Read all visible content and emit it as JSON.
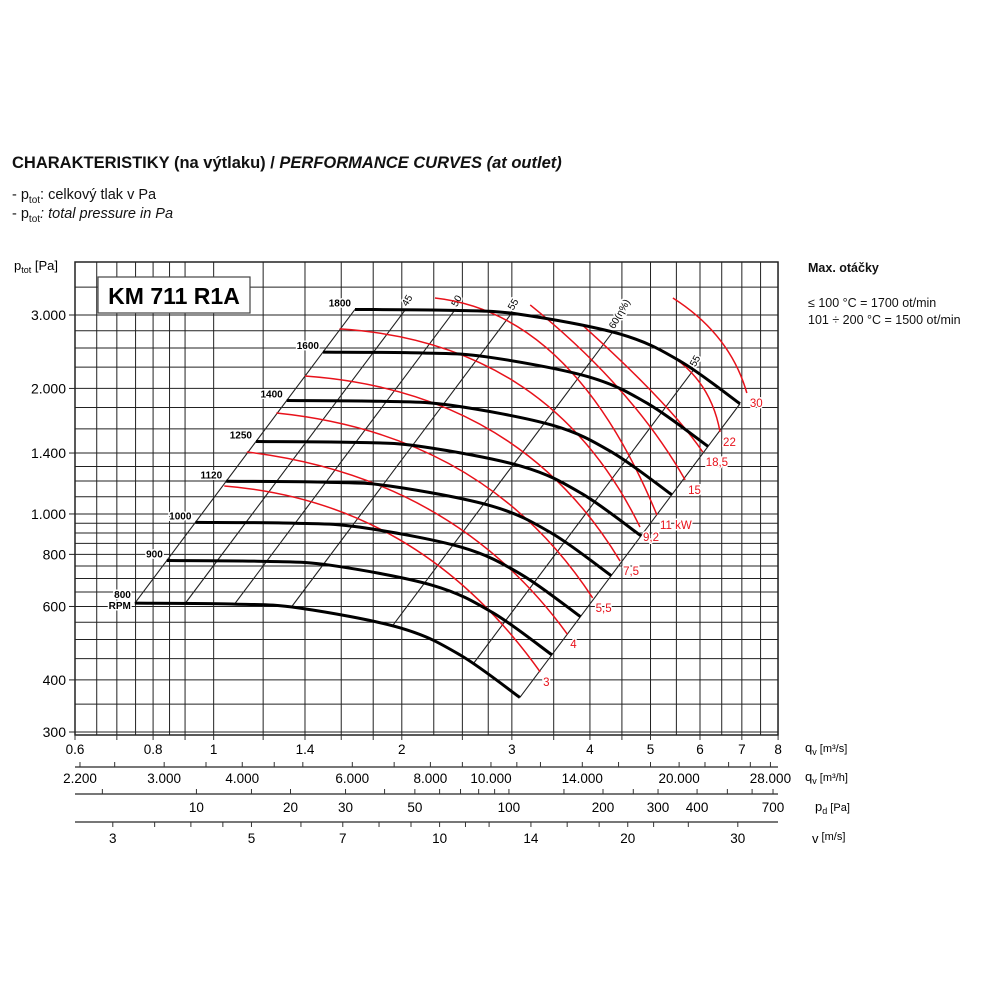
{
  "header": {
    "title_cz": "CHARAKTERISTIKY (na výtlaku) / ",
    "title_en": "PERFORMANCE CURVES (at outlet)",
    "legend": [
      {
        "prefix": "- p",
        "sub": "tot",
        "text": ": celkový tlak v Pa",
        "italic": false
      },
      {
        "prefix": "- p",
        "sub": "tot",
        "text": ": total pressure in Pa",
        "italic": true
      }
    ]
  },
  "side_note": {
    "title": "Max. otáčky",
    "line1": "≤ 100 °C = 1700 ot/min",
    "line2": "101 ÷ 200 °C = 1500 ot/min"
  },
  "chart_data": {
    "type": "line",
    "title": "KM 711 R1A",
    "ylabel": "ptot [Pa]",
    "ylabel_main": "p",
    "ylabel_sub": "tot",
    "ylabel_unit": " [Pa]",
    "xlabel": "qv [m3/s]",
    "xscale": "log",
    "yscale": "log",
    "xlim": [
      0.6,
      8
    ],
    "ylim": [
      300,
      4000
    ],
    "grid": true,
    "y_ticks": [
      {
        "value": 3000,
        "label": "3.000"
      },
      {
        "value": 2000,
        "label": "2.000"
      },
      {
        "value": 1400,
        "label": "1.400"
      },
      {
        "value": 1000,
        "label": "1.000"
      },
      {
        "value": 800,
        "label": "800"
      },
      {
        "value": 600,
        "label": "600"
      },
      {
        "value": 400,
        "label": "400"
      },
      {
        "value": 300,
        "label": "300"
      }
    ],
    "rpm_series": {
      "base_rpm": 800,
      "base_curve": {
        "q": [
          0.748,
          1.08,
          1.37,
          1.99,
          2.48,
          3.09
        ],
        "p": [
          611,
          608,
          595,
          533,
          459,
          363
        ]
      },
      "speeds": [
        {
          "rpm": 800,
          "label": "800",
          "label2": "RPM"
        },
        {
          "rpm": 900,
          "label": "900"
        },
        {
          "rpm": 1000,
          "label": "1000"
        },
        {
          "rpm": 1120,
          "label": "1120"
        },
        {
          "rpm": 1250,
          "label": "1250"
        },
        {
          "rpm": 1400,
          "label": "1400"
        },
        {
          "rpm": 1600,
          "label": "1600"
        },
        {
          "rpm": 1800,
          "label": "1800"
        }
      ]
    },
    "efficiency_lines": [
      {
        "q_at_800rpm": 0.748,
        "label": ""
      },
      {
        "q_at_800rpm": 0.9,
        "label": "45"
      },
      {
        "q_at_800rpm": 1.08,
        "label": "50"
      },
      {
        "q_at_800rpm": 1.33,
        "label": "55"
      },
      {
        "q_at_800rpm": 1.93,
        "label": "60(η%)"
      },
      {
        "q_at_800rpm": 2.6,
        "label": "55"
      },
      {
        "q_at_800rpm": 3.09,
        "label": ""
      }
    ],
    "power_curves": [
      {
        "label": "3",
        "q": [
          1.04,
          1.99,
          3.33
        ],
        "p": [
          1167,
          865,
          418
        ]
      },
      {
        "label": "4",
        "q": [
          1.13,
          2.22,
          3.68
        ],
        "p": [
          1408,
          1022,
          515
        ]
      },
      {
        "label": "5,5",
        "q": [
          1.26,
          2.48,
          4.04
        ],
        "p": [
          1746,
          1275,
          629
        ]
      },
      {
        "label": "7,5",
        "q": [
          1.4,
          2.77,
          4.47
        ],
        "p": [
          2142,
          1590,
          771
        ]
      },
      {
        "label": "9,2",
        "q": [
          1.59,
          3.09,
          4.81
        ],
        "p": [
          2779,
          2037,
          930
        ]
      },
      {
        "label": "11 kW",
        "q": [
          2.26,
          3.58,
          5.12
        ],
        "p": [
          3295,
          2340,
          994
        ]
      },
      {
        "label": "15",
        "q": [
          3.21,
          4.47,
          5.68
        ],
        "p": [
          3171,
          1983,
          1207
        ]
      },
      {
        "label": "18,5",
        "q": [
          3.89,
          5.12,
          6.06
        ],
        "p": [
          2838,
          1908,
          1408
        ]
      },
      {
        "label": "22",
        "q": [
          5.18,
          6.0,
          6.46
        ],
        "p": [
          2485,
          2061,
          1572
        ]
      },
      {
        "label": "30",
        "q": [
          5.43,
          6.46,
          7.13
        ],
        "p": [
          3295,
          2613,
          1950
        ]
      }
    ],
    "secondary_scales": [
      {
        "name": "qv-m3s",
        "unit_main": "q",
        "unit_sub": "v",
        "unit": " [m³/s]",
        "factor_from_qv": 1,
        "power": 1,
        "ticks": [
          0.6,
          0.7,
          0.8,
          0.9,
          1,
          1.2,
          1.4,
          1.6,
          1.8,
          2,
          2.5,
          3,
          3.5,
          4,
          4.5,
          5,
          6,
          7,
          8
        ],
        "labels": [
          {
            "v": 0.6,
            "t": "0.6"
          },
          {
            "v": 0.8,
            "t": "0.8"
          },
          {
            "v": 1,
            "t": "1"
          },
          {
            "v": 1.4,
            "t": "1.4"
          },
          {
            "v": 2,
            "t": "2"
          },
          {
            "v": 3,
            "t": "3"
          },
          {
            "v": 4,
            "t": "4"
          },
          {
            "v": 5,
            "t": "5"
          },
          {
            "v": 6,
            "t": "6"
          },
          {
            "v": 7,
            "t": "7"
          },
          {
            "v": 8,
            "t": "8"
          }
        ]
      },
      {
        "name": "qv-m3h",
        "unit_main": "q",
        "unit_sub": "v",
        "unit": " [m³/h]",
        "factor_from_qv": 3600,
        "power": 1,
        "ticks": [
          2200,
          2500,
          3000,
          3500,
          4000,
          4500,
          5000,
          6000,
          7000,
          8000,
          9000,
          10000,
          11000,
          12000,
          14000,
          16000,
          18000,
          20000,
          22000,
          24000,
          26000,
          28000
        ],
        "labels": [
          {
            "v": 2200,
            "t": "2.200"
          },
          {
            "v": 3000,
            "t": "3.000"
          },
          {
            "v": 4000,
            "t": "4.000"
          },
          {
            "v": 6000,
            "t": "6.000"
          },
          {
            "v": 8000,
            "t": "8.000"
          },
          {
            "v": 10000,
            "t": "10.000"
          },
          {
            "v": 14000,
            "t": "14.000"
          },
          {
            "v": 20000,
            "t": "20.000"
          },
          {
            "v": 28000,
            "t": "28.000"
          }
        ]
      },
      {
        "name": "pd",
        "unit_main": "p",
        "unit_sub": "d",
        "unit": " [Pa]",
        "factor_from_qv": 11.35,
        "power": 2,
        "ticks": [
          5,
          10,
          15,
          20,
          30,
          40,
          50,
          60,
          70,
          80,
          90,
          100,
          150,
          200,
          250,
          300,
          400,
          500,
          600,
          700
        ],
        "labels": [
          {
            "v": 10,
            "t": "10"
          },
          {
            "v": 20,
            "t": "20"
          },
          {
            "v": 30,
            "t": "30"
          },
          {
            "v": 50,
            "t": "50"
          },
          {
            "v": 100,
            "t": "100"
          },
          {
            "v": 200,
            "t": "200"
          },
          {
            "v": 300,
            "t": "300"
          },
          {
            "v": 400,
            "t": "400"
          },
          {
            "v": 700,
            "t": "700"
          }
        ]
      },
      {
        "name": "v",
        "unit_main": "v",
        "unit_sub": "",
        "unit": " [m/s]",
        "factor_from_qv": 4.35,
        "power": 1,
        "ticks": [
          3,
          3.5,
          4,
          4.5,
          5,
          6,
          7,
          8,
          9,
          10,
          11,
          12,
          14,
          16,
          18,
          20,
          22,
          25,
          30,
          35
        ],
        "labels": [
          {
            "v": 3,
            "t": "3"
          },
          {
            "v": 5,
            "t": "5"
          },
          {
            "v": 7,
            "t": "7"
          },
          {
            "v": 10,
            "t": "10"
          },
          {
            "v": 14,
            "t": "14"
          },
          {
            "v": 20,
            "t": "20"
          },
          {
            "v": 30,
            "t": "30"
          }
        ]
      }
    ]
  }
}
